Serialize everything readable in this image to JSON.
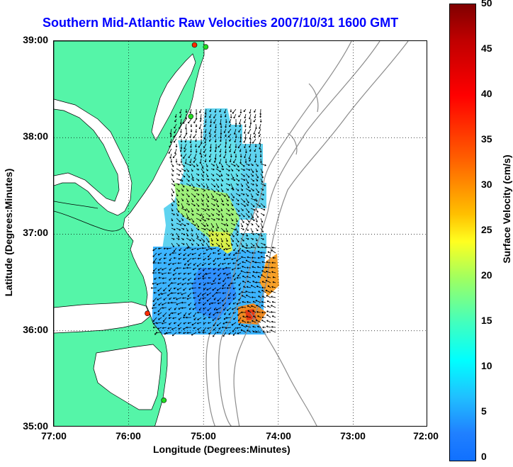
{
  "title": "Southern Mid-Atlantic Raw Velocities 2007/10/31 1600 GMT",
  "xlabel": "Longitude (Degrees:Minutes)",
  "ylabel": "Latitude (Degrees:Minutes)",
  "colorbar_label": "Surface Velocity (cm/s)",
  "x_ticks": [
    "77:00",
    "76:00",
    "75:00",
    "74:00",
    "73:00",
    "72:00"
  ],
  "y_ticks": [
    "39:00",
    "38:00",
    "37:00",
    "36:00",
    "35:00"
  ],
  "colorbar_ticks": [
    "50",
    "45",
    "40",
    "35",
    "30",
    "25",
    "20",
    "15",
    "10",
    "5",
    "0"
  ],
  "colors": {
    "land": "#55f5a8",
    "title": "#0000ff",
    "contour": "#8c8c8c",
    "station_red": "#ff2a00",
    "station_green": "#22dd22"
  },
  "map": {
    "lon_range": [
      -77,
      -72
    ],
    "lat_range": [
      35,
      39
    ],
    "color_scale": [
      0,
      50
    ],
    "grid": true,
    "stations": [
      {
        "lon": -75.12,
        "lat": 38.96,
        "color": "red"
      },
      {
        "lon": -74.97,
        "lat": 38.94,
        "color": "green"
      },
      {
        "lon": -75.17,
        "lat": 38.22,
        "color": "green"
      },
      {
        "lon": -75.75,
        "lat": 36.18,
        "color": "red"
      },
      {
        "lon": -75.53,
        "lat": 35.28,
        "color": "green"
      }
    ]
  }
}
